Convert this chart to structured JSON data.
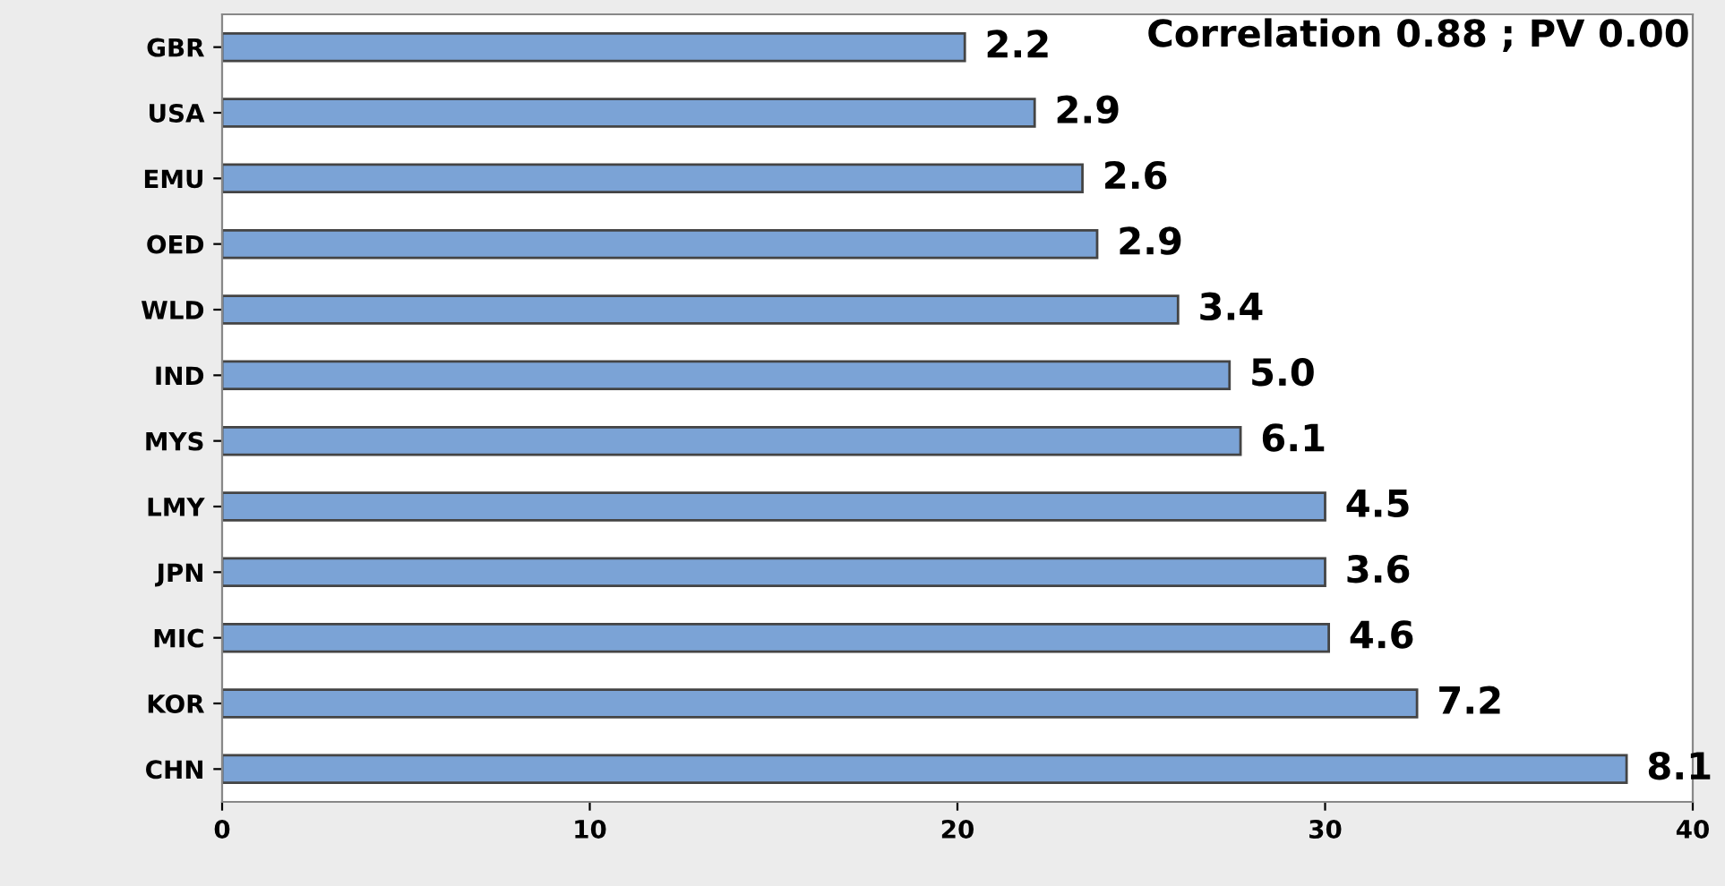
{
  "chart_data": {
    "type": "bar",
    "orientation": "horizontal",
    "categories": [
      "GBR",
      "USA",
      "EMU",
      "OED",
      "WLD",
      "IND",
      "MYS",
      "LMY",
      "JPN",
      "MIC",
      "KOR",
      "CHN"
    ],
    "values": [
      20.2,
      22.1,
      23.4,
      23.8,
      26.0,
      27.4,
      27.7,
      30.0,
      30.0,
      30.1,
      32.5,
      38.2
    ],
    "color": "#7ba3d6",
    "xlim": [
      0,
      40
    ],
    "xticks": [
      0,
      10,
      20,
      30,
      40
    ],
    "annotations": [
      "Correlation 0.88 ; PV 0.00",
      {
        "text": "2.2",
        "x": 20.2,
        "y": "GBR"
      },
      {
        "text": "2.9",
        "x": 22.1,
        "y": "USA"
      },
      {
        "text": "2.6",
        "x": 23.4,
        "y": "EMU"
      },
      {
        "text": "2.9",
        "x": 23.8,
        "y": "OED"
      },
      {
        "text": "3.4",
        "x": 26.0,
        "y": "WLD"
      },
      {
        "text": "5.0",
        "x": 27.4,
        "y": "IND"
      },
      {
        "text": "6.1",
        "x": 27.7,
        "y": "MYS"
      },
      {
        "text": "4.5",
        "x": 30.0,
        "y": "LMY"
      },
      {
        "text": "3.6",
        "x": 30.0,
        "y": "JPN"
      },
      {
        "text": "4.6",
        "x": 30.1,
        "y": "MIC"
      },
      {
        "text": "7.2",
        "x": 32.5,
        "y": "KOR"
      },
      {
        "text": "8.1",
        "x": 38.2,
        "y": "CHN"
      }
    ],
    "grid": false
  }
}
